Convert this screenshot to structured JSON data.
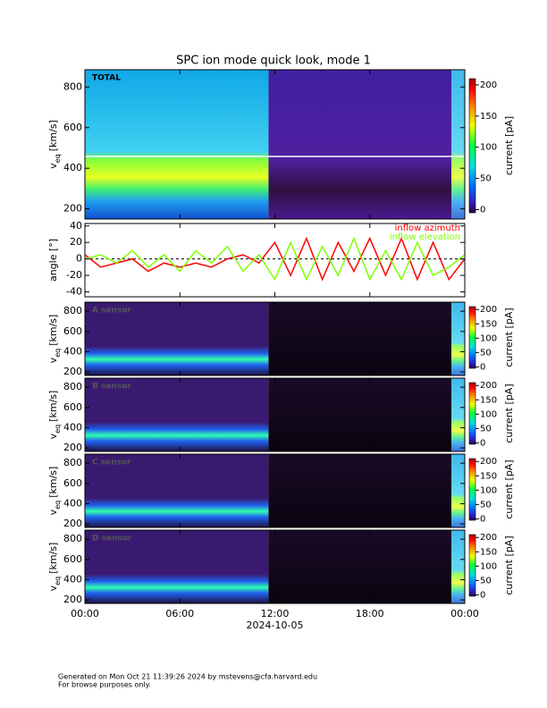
{
  "chart_data": [
    {
      "type": "heatmap",
      "title": "SPC ion mode quick look, mode 1",
      "label": "TOTAL",
      "ylabel": "v",
      "ylabel_sub": "eq",
      "ylabel_unit": "[km/s]",
      "ylim": [
        150,
        885
      ],
      "yticks": [
        200,
        400,
        600,
        800
      ],
      "xlim": [
        0,
        24
      ],
      "colorbar": {
        "label": "current [pA]",
        "lim": [
          -5,
          210
        ],
        "ticks": [
          0,
          50,
          100,
          150,
          200
        ]
      }
    },
    {
      "type": "line",
      "ylabel": "angle [°]",
      "ylim": [
        -46,
        43
      ],
      "yticks": [
        -40,
        -20,
        0,
        20,
        40
      ],
      "xlim": [
        0,
        24
      ],
      "x": [
        0,
        1,
        2,
        3,
        4,
        5,
        6,
        7,
        8,
        9,
        10,
        11,
        12,
        13,
        14,
        15,
        16,
        17,
        18,
        19,
        20,
        21,
        22,
        23,
        24
      ],
      "series": [
        {
          "name": "inflow azimuth",
          "color": "#ff0000",
          "values": [
            5,
            -10,
            -5,
            0,
            -15,
            -5,
            -10,
            -5,
            -10,
            0,
            5,
            -5,
            20,
            -20,
            25,
            -25,
            20,
            -15,
            25,
            -20,
            25,
            -25,
            20,
            -25,
            0
          ]
        },
        {
          "name": "inflow elevation",
          "color": "#7fff00",
          "values": [
            0,
            5,
            -5,
            10,
            -10,
            5,
            -15,
            10,
            -5,
            15,
            -15,
            5,
            -25,
            20,
            -25,
            15,
            -20,
            25,
            -25,
            10,
            -25,
            20,
            -20,
            -10,
            5
          ]
        }
      ]
    },
    {
      "type": "heatmap",
      "label": "A sensor",
      "ylabel": "v",
      "ylabel_sub": "eq",
      "ylabel_unit": "[km/s]",
      "ylim": [
        165,
        890
      ],
      "yticks": [
        200,
        400,
        600,
        800
      ],
      "xlim": [
        0,
        24
      ],
      "colorbar": {
        "label": "current [pA]",
        "lim": [
          -5,
          210
        ],
        "ticks": [
          0,
          50,
          100,
          150,
          200
        ]
      }
    },
    {
      "type": "heatmap",
      "label": "B sensor",
      "ylabel": "v",
      "ylabel_sub": "eq",
      "ylabel_unit": "[km/s]",
      "ylim": [
        165,
        890
      ],
      "yticks": [
        200,
        400,
        600,
        800
      ],
      "xlim": [
        0,
        24
      ],
      "colorbar": {
        "label": "current [pA]",
        "lim": [
          -5,
          210
        ],
        "ticks": [
          0,
          50,
          100,
          150,
          200
        ]
      }
    },
    {
      "type": "heatmap",
      "label": "C sensor",
      "ylabel": "v",
      "ylabel_sub": "eq",
      "ylabel_unit": "[km/s]",
      "ylim": [
        165,
        890
      ],
      "yticks": [
        200,
        400,
        600,
        800
      ],
      "xlim": [
        0,
        24
      ],
      "colorbar": {
        "label": "current [pA]",
        "lim": [
          -5,
          210
        ],
        "ticks": [
          0,
          50,
          100,
          150,
          200
        ]
      }
    },
    {
      "type": "heatmap",
      "label": "D sensor",
      "ylabel": "v",
      "ylabel_sub": "eq",
      "ylabel_unit": "[km/s]",
      "ylim": [
        165,
        890
      ],
      "yticks": [
        200,
        400,
        600,
        800
      ],
      "xlim": [
        0,
        24
      ],
      "xlabel": "2024-10-05",
      "xticks": [
        {
          "value": 0,
          "label": "00:00"
        },
        {
          "value": 6,
          "label": "06:00"
        },
        {
          "value": 12,
          "label": "12:00"
        },
        {
          "value": 18,
          "label": "18:00"
        },
        {
          "value": 24,
          "label": "00:00"
        }
      ],
      "colorbar": {
        "label": "current [pA]",
        "lim": [
          -5,
          210
        ],
        "ticks": [
          0,
          50,
          100,
          150,
          200
        ]
      }
    }
  ],
  "footer": [
    "Generated on Mon Oct 21 11:39:26 2024 by mstevens@cfa.harvard.edu",
    "For browse purposes only."
  ]
}
